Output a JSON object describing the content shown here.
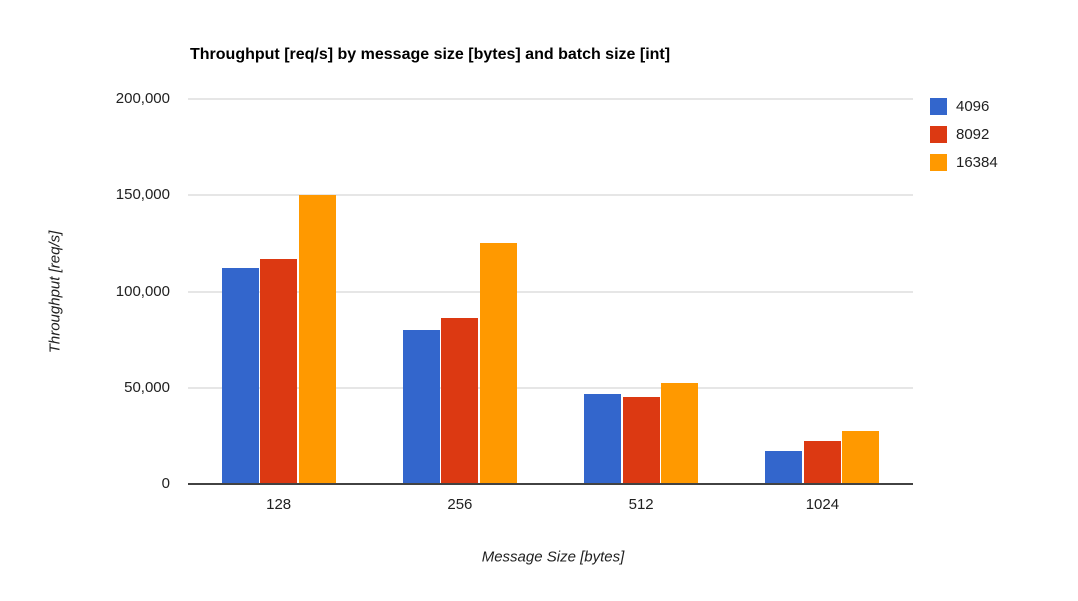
{
  "chart_data": {
    "type": "bar",
    "title": "Throughput [req/s] by message size [bytes] and batch size [int]",
    "xlabel": "Message Size [bytes]",
    "ylabel": "Throughput [req/s]",
    "categories": [
      "128",
      "256",
      "512",
      "1024"
    ],
    "series": [
      {
        "name": "4096",
        "color": "#3366CC",
        "values": [
          112000,
          80000,
          47000,
          17000
        ]
      },
      {
        "name": "8092",
        "color": "#DC3912",
        "values": [
          117000,
          86500,
          45000,
          22500
        ]
      },
      {
        "name": "16384",
        "color": "#FF9900",
        "values": [
          150000,
          125000,
          52500,
          27500
        ]
      }
    ],
    "ylim": [
      0,
      200000
    ],
    "yticks": [
      {
        "value": 0,
        "label": "0"
      },
      {
        "value": 50000,
        "label": "50,000"
      },
      {
        "value": 100000,
        "label": "100,000"
      },
      {
        "value": 150000,
        "label": "150,000"
      },
      {
        "value": 200000,
        "label": "200,000"
      }
    ],
    "grid": true,
    "legend_position": "right"
  },
  "colors": {
    "background": "#FFFFFF",
    "gridline": "#E6E6E6",
    "axis_line": "#424242",
    "text": "#212121",
    "title_text": "#000000"
  }
}
